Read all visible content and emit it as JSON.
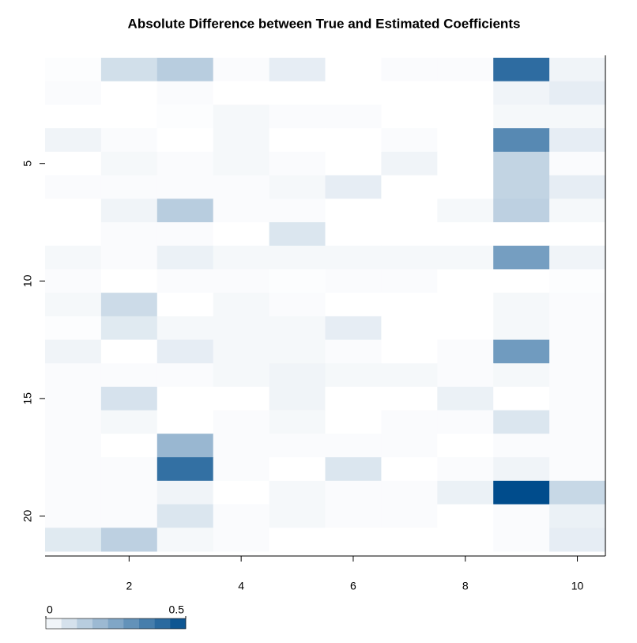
{
  "chart_data": {
    "type": "heatmap",
    "title": "Absolute Difference between True and Estimated Coefficients",
    "x": [
      1,
      2,
      3,
      4,
      5,
      6,
      7,
      8,
      9,
      10
    ],
    "y": [
      1,
      2,
      3,
      4,
      5,
      6,
      7,
      8,
      9,
      10,
      11,
      12,
      13,
      14,
      15,
      16,
      17,
      18,
      19,
      20,
      21
    ],
    "values": [
      [
        0.005,
        0.09,
        0.14,
        0.01,
        0.05,
        0,
        0.01,
        0.01,
        0.41,
        0.03
      ],
      [
        0.01,
        0,
        0.01,
        0,
        0,
        0,
        0,
        0,
        0.03,
        0.05
      ],
      [
        0,
        0,
        0.005,
        0.02,
        0.01,
        0.01,
        0,
        0,
        0.02,
        0.02
      ],
      [
        0.03,
        0.01,
        0,
        0.02,
        0,
        0,
        0.01,
        0,
        0.33,
        0.05
      ],
      [
        0,
        0.02,
        0.01,
        0.02,
        0.01,
        0,
        0.03,
        0,
        0.12,
        0.01
      ],
      [
        0.01,
        0.01,
        0.01,
        0.01,
        0.02,
        0.05,
        0,
        0,
        0.12,
        0.05
      ],
      [
        0,
        0.03,
        0.14,
        0.01,
        0.01,
        0,
        0,
        0.02,
        0.13,
        0.02
      ],
      [
        0,
        0.01,
        0.01,
        0,
        0.07,
        0,
        0,
        0,
        0,
        0
      ],
      [
        0.02,
        0.01,
        0.04,
        0.02,
        0.02,
        0.02,
        0.02,
        0.02,
        0.27,
        0.03
      ],
      [
        0.01,
        0,
        0.01,
        0.01,
        0.005,
        0.01,
        0.01,
        0,
        0,
        0.005
      ],
      [
        0.02,
        0.1,
        0,
        0.02,
        0.01,
        0,
        0,
        0,
        0.02,
        0.01
      ],
      [
        0.005,
        0.06,
        0.02,
        0.02,
        0.02,
        0.05,
        0,
        0,
        0.02,
        0.01
      ],
      [
        0.03,
        0,
        0.05,
        0.02,
        0.02,
        0.01,
        0,
        0.01,
        0.28,
        0.01
      ],
      [
        0.01,
        0.01,
        0.01,
        0.02,
        0.03,
        0.02,
        0.02,
        0.01,
        0.02,
        0.01
      ],
      [
        0.01,
        0.08,
        0,
        0,
        0.03,
        0,
        0,
        0.04,
        0,
        0.01
      ],
      [
        0.01,
        0.02,
        0,
        0.01,
        0.02,
        0,
        0.01,
        0.01,
        0.07,
        0.01
      ],
      [
        0.01,
        0,
        0.2,
        0.01,
        0.01,
        0.01,
        0.01,
        0,
        0.01,
        0.01
      ],
      [
        0.01,
        0.01,
        0.4,
        0.01,
        0,
        0.07,
        0,
        0.01,
        0.03,
        0.01
      ],
      [
        0.01,
        0.01,
        0.03,
        0,
        0.02,
        0.01,
        0.01,
        0.04,
        0.5,
        0.11
      ],
      [
        0.01,
        0.01,
        0.07,
        0.01,
        0.02,
        0.01,
        0.01,
        0,
        0.01,
        0.04
      ],
      [
        0.06,
        0.13,
        0.02,
        0.01,
        0,
        0,
        0,
        0,
        0.01,
        0.05
      ]
    ],
    "xlim": [
      0.5,
      10.5
    ],
    "xticks": [
      2,
      4,
      6,
      8,
      10
    ],
    "ylim": [
      21.5,
      0.5
    ],
    "yticks": [
      5,
      10,
      15,
      20
    ],
    "colorbar": {
      "lim": [
        0,
        0.5
      ],
      "ticks": [
        0,
        0.5
      ],
      "colors": [
        "#ffffff",
        "#004c8c"
      ]
    }
  }
}
